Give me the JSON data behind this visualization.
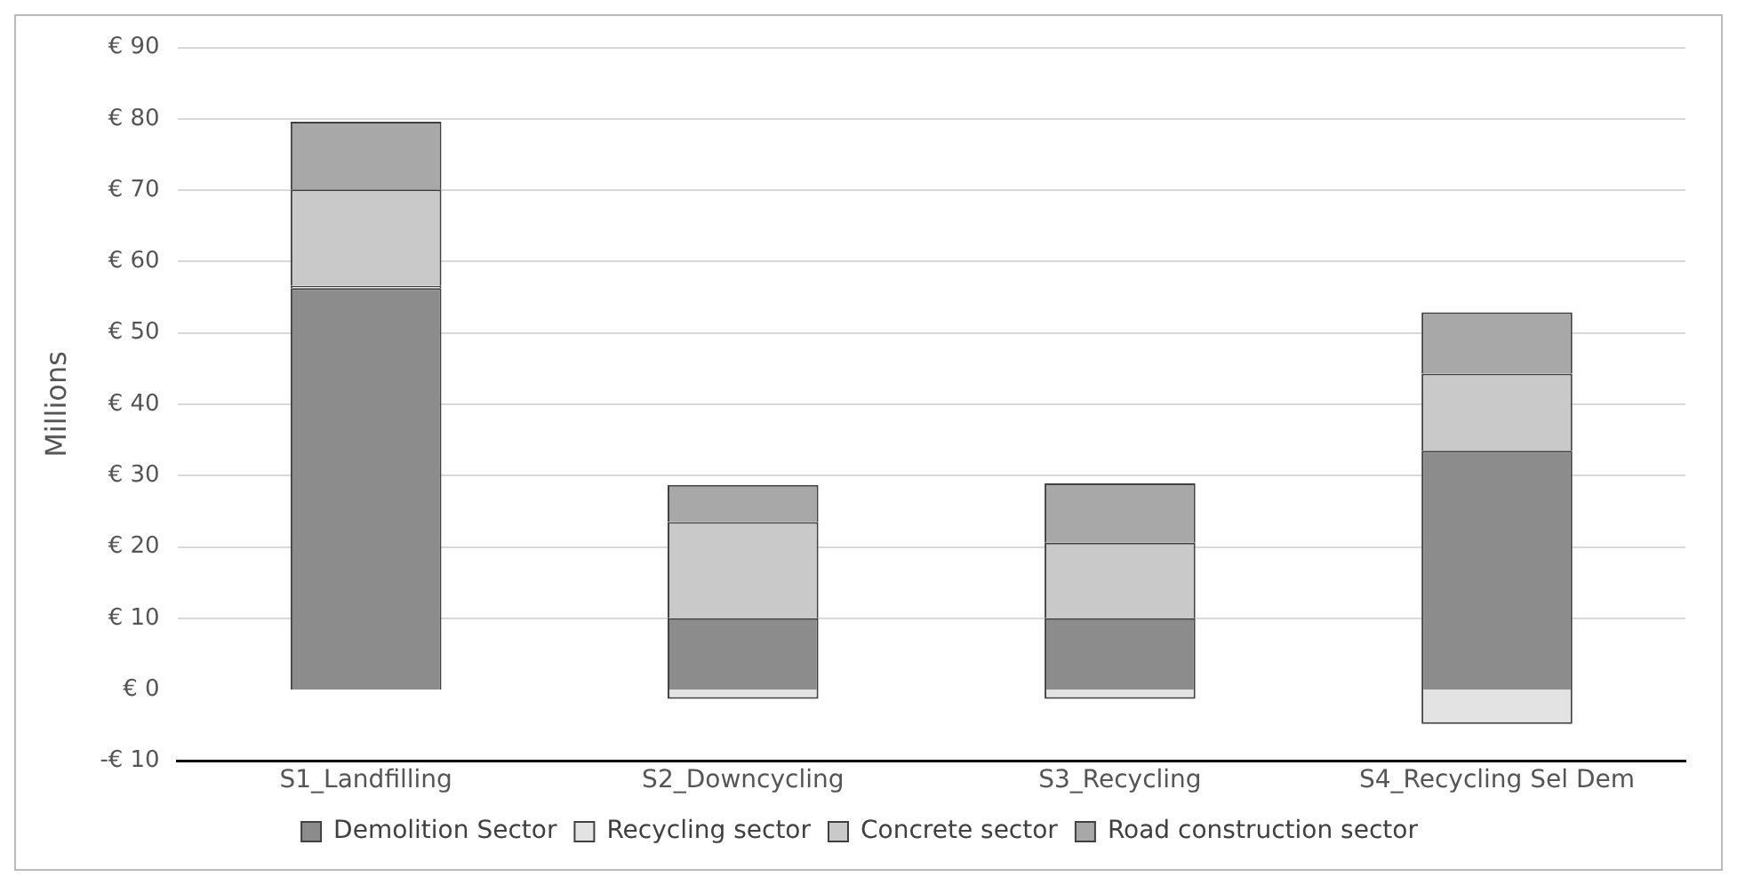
{
  "chart_data": {
    "type": "bar",
    "stacked": true,
    "ylabel": "Millions",
    "categories": [
      "S1_Landfilling",
      "S2_Downcycling",
      "S3_Recycling",
      "S4_Recycling Sel Dem"
    ],
    "series": [
      {
        "name": "Demolition Sector",
        "color": "#8c8c8c",
        "values": [
          56.3,
          10.0,
          10.0,
          33.5
        ]
      },
      {
        "name": "Recycling sector",
        "color": "#e3e3e3",
        "values": [
          0.3,
          -1.3,
          -1.3,
          -4.8
        ]
      },
      {
        "name": "Concrete sector",
        "color": "#c9c9c9",
        "values": [
          13.5,
          13.5,
          10.6,
          10.8
        ]
      },
      {
        "name": "Road construction sector",
        "color": "#a8a8a8",
        "values": [
          9.5,
          5.2,
          8.3,
          8.6
        ]
      }
    ],
    "ylim": [
      -10,
      90
    ],
    "yticks": [
      {
        "value": -10,
        "label": "-€ 10"
      },
      {
        "value": 0,
        "label": "€ 0"
      },
      {
        "value": 10,
        "label": "€ 10"
      },
      {
        "value": 20,
        "label": "€ 20"
      },
      {
        "value": 30,
        "label": "€ 30"
      },
      {
        "value": 40,
        "label": "€ 40"
      },
      {
        "value": 50,
        "label": "€ 50"
      },
      {
        "value": 60,
        "label": "€ 60"
      },
      {
        "value": 70,
        "label": "€ 70"
      },
      {
        "value": 80,
        "label": "€ 80"
      },
      {
        "value": 90,
        "label": "€ 90"
      }
    ],
    "grid": "y",
    "legend": "bottom"
  }
}
